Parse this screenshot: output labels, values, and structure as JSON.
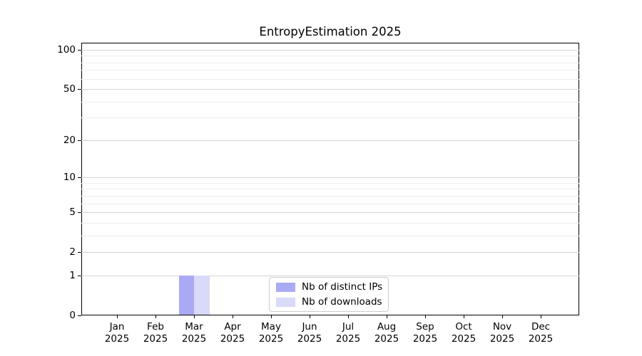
{
  "chart_data": {
    "type": "bar",
    "title": "EntropyEstimation 2025",
    "x_months": [
      "Jan",
      "Feb",
      "Mar",
      "Apr",
      "May",
      "Jun",
      "Jul",
      "Aug",
      "Sep",
      "Oct",
      "Nov",
      "Dec"
    ],
    "x_year": "2025",
    "series": [
      {
        "name": "Nb of distinct IPs",
        "color": "#aaaaf4",
        "values": [
          0,
          0,
          1,
          0,
          0,
          0,
          0,
          0,
          0,
          0,
          0,
          0
        ]
      },
      {
        "name": "Nb of downloads",
        "color": "#d9d9f8",
        "values": [
          0,
          0,
          1,
          0,
          0,
          0,
          0,
          0,
          0,
          0,
          0,
          0
        ]
      }
    ],
    "y_scale": "log1p",
    "ylim": [
      0,
      113
    ],
    "y_major_ticks": [
      0,
      1,
      2,
      5,
      10,
      20,
      50,
      100
    ],
    "y_minor_gridlines": [
      3,
      4,
      6,
      7,
      8,
      9,
      30,
      40,
      60,
      70,
      80,
      90
    ],
    "grid": "horizontal",
    "legend_position": "inside-bottom-center"
  },
  "colors": {
    "grid_major": "#d4d4d4",
    "grid_minor": "#ededed",
    "spine": "#000000",
    "legend_border": "#cccccc",
    "background": "#ffffff"
  }
}
